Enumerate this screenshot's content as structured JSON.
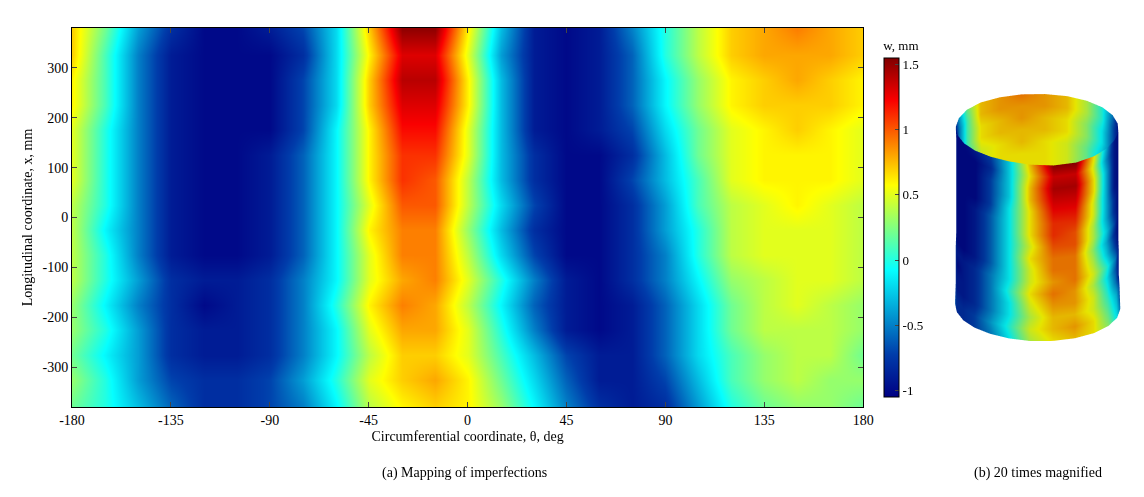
{
  "chart_data": [
    {
      "type": "heatmap",
      "caption": "(a) Mapping of imperfections",
      "xlabel": "Circumferential coordinate, θ, deg",
      "ylabel": "Longitudinal coordinate, x, mm",
      "x": [
        -180,
        -165,
        -150,
        -135,
        -120,
        -105,
        -90,
        -75,
        -60,
        -45,
        -30,
        -15,
        0,
        15,
        30,
        45,
        60,
        75,
        90,
        105,
        120,
        135,
        150,
        165,
        180
      ],
      "y": [
        -375,
        -325,
        -275,
        -225,
        -175,
        -125,
        -75,
        -25,
        25,
        75,
        125,
        175,
        225,
        275,
        325,
        375
      ],
      "cells": [
        [
          0.2,
          0.0,
          -0.3,
          -0.6,
          -0.8,
          -0.8,
          -0.7,
          -0.5,
          -0.1,
          0.4,
          0.6,
          0.7,
          0.6,
          0.3,
          -0.1,
          -0.5,
          -0.8,
          -0.9,
          -0.8,
          -0.4,
          0.0,
          0.2,
          0.3,
          0.3,
          0.2
        ],
        [
          0.3,
          0.0,
          -0.4,
          -0.7,
          -0.8,
          -0.8,
          -0.7,
          -0.4,
          0.0,
          0.5,
          0.7,
          0.8,
          0.6,
          0.2,
          -0.2,
          -0.6,
          -0.9,
          -0.9,
          -0.7,
          -0.3,
          0.1,
          0.3,
          0.4,
          0.3,
          0.3
        ],
        [
          0.2,
          -0.1,
          -0.4,
          -0.8,
          -0.9,
          -0.9,
          -0.8,
          -0.5,
          -0.1,
          0.4,
          0.7,
          0.7,
          0.5,
          0.1,
          -0.3,
          -0.7,
          -0.9,
          -0.9,
          -0.6,
          -0.2,
          0.1,
          0.3,
          0.4,
          0.4,
          0.2
        ],
        [
          0.3,
          0.0,
          -0.4,
          -0.8,
          -0.9,
          -0.9,
          -0.8,
          -0.5,
          -0.1,
          0.5,
          0.8,
          0.8,
          0.5,
          0.0,
          -0.5,
          -0.9,
          -1.0,
          -0.9,
          -0.6,
          -0.2,
          0.2,
          0.4,
          0.4,
          0.4,
          0.3
        ],
        [
          0.3,
          -0.1,
          -0.5,
          -0.8,
          -1.0,
          -0.9,
          -0.8,
          -0.5,
          0.0,
          0.6,
          0.9,
          0.8,
          0.4,
          -0.1,
          -0.6,
          -0.9,
          -1.0,
          -0.9,
          -0.6,
          -0.2,
          0.2,
          0.4,
          0.5,
          0.4,
          0.3
        ],
        [
          0.4,
          0.0,
          -0.4,
          -0.8,
          -0.9,
          -0.9,
          -0.8,
          -0.5,
          -0.1,
          0.5,
          0.8,
          0.9,
          0.5,
          0.0,
          -0.5,
          -0.9,
          -1.0,
          -0.8,
          -0.5,
          -0.1,
          0.3,
          0.4,
          0.5,
          0.5,
          0.4
        ],
        [
          0.4,
          0.0,
          -0.5,
          -0.9,
          -1.0,
          -1.0,
          -0.9,
          -0.6,
          -0.1,
          0.5,
          0.9,
          0.9,
          0.4,
          -0.2,
          -0.7,
          -1.0,
          -1.0,
          -0.8,
          -0.5,
          0.0,
          0.4,
          0.5,
          0.5,
          0.5,
          0.4
        ],
        [
          0.4,
          -0.1,
          -0.5,
          -0.9,
          -1.0,
          -1.0,
          -0.9,
          -0.6,
          -0.1,
          0.6,
          0.9,
          0.9,
          0.3,
          -0.3,
          -0.8,
          -1.0,
          -1.0,
          -0.8,
          -0.4,
          0.0,
          0.4,
          0.5,
          0.5,
          0.5,
          0.4
        ],
        [
          0.4,
          0.0,
          -0.5,
          -0.9,
          -1.0,
          -1.0,
          -0.9,
          -0.6,
          -0.1,
          0.5,
          1.0,
          1.0,
          0.4,
          -0.2,
          -0.7,
          -1.0,
          -1.0,
          -0.8,
          -0.4,
          0.1,
          0.4,
          0.5,
          0.6,
          0.5,
          0.4
        ],
        [
          0.5,
          0.0,
          -0.5,
          -0.9,
          -1.0,
          -1.0,
          -0.9,
          -0.6,
          -0.1,
          0.6,
          1.1,
          1.0,
          0.4,
          -0.3,
          -0.8,
          -1.0,
          -1.0,
          -0.7,
          -0.3,
          0.1,
          0.5,
          0.6,
          0.6,
          0.6,
          0.5
        ],
        [
          0.5,
          0.0,
          -0.5,
          -0.9,
          -1.0,
          -1.0,
          -0.9,
          -0.6,
          -0.1,
          0.6,
          1.1,
          1.1,
          0.5,
          -0.3,
          -0.8,
          -1.0,
          -1.0,
          -0.8,
          -0.3,
          0.2,
          0.5,
          0.6,
          0.6,
          0.6,
          0.5
        ],
        [
          0.5,
          0.0,
          -0.5,
          -0.9,
          -1.0,
          -1.0,
          -1.0,
          -0.7,
          -0.1,
          0.6,
          1.2,
          1.2,
          0.5,
          -0.3,
          -0.9,
          -1.0,
          -0.9,
          -0.7,
          -0.2,
          0.2,
          0.5,
          0.6,
          0.7,
          0.6,
          0.5
        ],
        [
          0.6,
          0.1,
          -0.5,
          -0.9,
          -1.0,
          -1.0,
          -1.0,
          -0.7,
          -0.2,
          0.7,
          1.3,
          1.3,
          0.6,
          -0.3,
          -0.9,
          -1.0,
          -0.9,
          -0.6,
          -0.1,
          0.3,
          0.6,
          0.7,
          0.7,
          0.7,
          0.6
        ],
        [
          0.6,
          0.1,
          -0.5,
          -0.9,
          -1.0,
          -1.0,
          -1.0,
          -0.7,
          -0.2,
          0.7,
          1.4,
          1.4,
          0.6,
          -0.3,
          -0.9,
          -1.0,
          -0.9,
          -0.6,
          -0.1,
          0.3,
          0.6,
          0.7,
          0.8,
          0.7,
          0.6
        ],
        [
          0.7,
          0.1,
          -0.5,
          -0.9,
          -1.0,
          -1.0,
          -1.0,
          -0.8,
          -0.2,
          0.6,
          1.3,
          1.3,
          0.5,
          -0.4,
          -0.9,
          -1.0,
          -0.9,
          -0.6,
          0.0,
          0.4,
          0.7,
          0.8,
          0.8,
          0.8,
          0.7
        ],
        [
          0.7,
          0.2,
          -0.4,
          -0.8,
          -1.0,
          -1.0,
          -0.9,
          -0.7,
          -0.2,
          0.7,
          1.5,
          1.5,
          0.6,
          -0.3,
          -0.9,
          -1.0,
          -0.9,
          -0.5,
          0.0,
          0.4,
          0.7,
          0.8,
          0.9,
          0.8,
          0.7
        ]
      ],
      "xlim": [
        -180,
        180
      ],
      "ylim": [
        -380,
        380
      ],
      "xticks": [
        -180,
        -135,
        -90,
        -45,
        0,
        45,
        90,
        135,
        180
      ],
      "yticks": [
        -300,
        -200,
        -100,
        0,
        100,
        200,
        300
      ],
      "colorbar": {
        "title": "w, mm",
        "range": [
          -1.05,
          1.55
        ],
        "ticks": [
          -1,
          -0.5,
          0,
          0.5,
          1,
          1.5
        ]
      },
      "color": "Jet"
    },
    {
      "type": "surface",
      "caption": "(b) 20 times magnified",
      "color": "Jet"
    }
  ]
}
